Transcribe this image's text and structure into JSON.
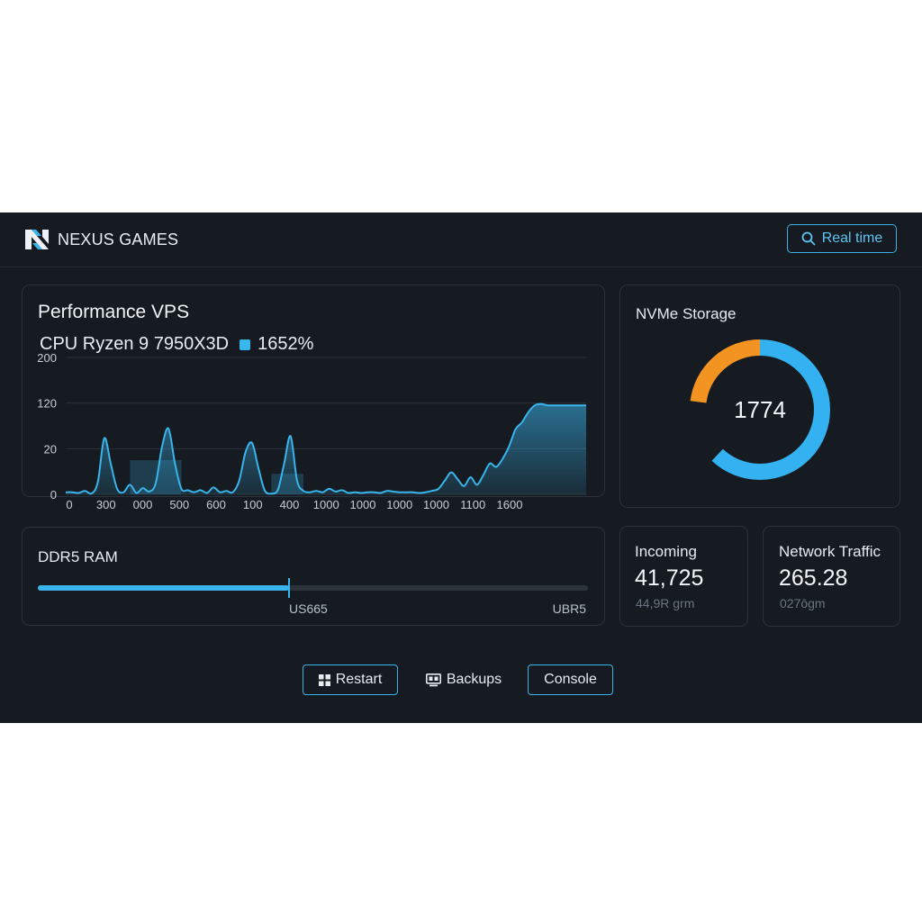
{
  "brand": {
    "name": "NEXUS GAMES"
  },
  "header": {
    "realtime_label": "Real time"
  },
  "performance": {
    "title": "Performance VPS",
    "cpu_label": "CPU Ryzen 9 7950X3D",
    "cpu_value": "1652%"
  },
  "chart_data": {
    "type": "area",
    "y_tick_labels": [
      "200",
      "120",
      "20",
      "0"
    ],
    "x_tick_labels": [
      "0",
      "300",
      "000",
      "500",
      "600",
      "100",
      "400",
      "1000",
      "1000",
      "1000",
      "1000",
      "1100",
      "1600"
    ],
    "y_plot_range": [
      0,
      200
    ],
    "values": [
      3,
      3,
      2,
      5,
      1,
      18,
      82,
      45,
      8,
      3,
      14,
      2,
      9,
      4,
      16,
      70,
      96,
      45,
      8,
      6,
      3,
      6,
      2,
      10,
      3,
      5,
      3,
      20,
      62,
      75,
      38,
      5,
      1,
      6,
      45,
      85,
      20,
      5,
      3,
      5,
      3,
      8,
      4,
      6,
      2,
      3,
      2,
      3,
      3,
      2,
      5,
      4,
      3,
      3,
      3,
      2,
      3,
      5,
      8,
      20,
      32,
      22,
      12,
      25,
      14,
      28,
      45,
      40,
      52,
      70,
      95,
      105,
      120,
      130,
      132,
      130,
      130,
      130,
      130,
      130,
      130,
      130
    ],
    "bands": [
      {
        "from_index": 10,
        "to_index": 18,
        "level": 50
      },
      {
        "from_index": 32,
        "to_index": 37,
        "level": 30
      }
    ],
    "grid": true,
    "color": "#3ab4ec"
  },
  "storage": {
    "title": "NVMe Storage",
    "value": "1774",
    "donut": {
      "blue_fraction": 0.62,
      "orange_fraction": 0.23,
      "blue_color": "#33b1f0",
      "orange_color": "#f39422"
    }
  },
  "ram": {
    "title": "DDR5 RAM",
    "fill_fraction": 0.456,
    "label_left": "US665",
    "label_right": "UBR5"
  },
  "incoming": {
    "title": "Incoming",
    "value": "41,725",
    "sub": "44,9R grm"
  },
  "network": {
    "title": "Network Traffic",
    "value": "265.28",
    "sub": "027ōgm"
  },
  "actions": {
    "restart_label": "Restart",
    "backups_label": "Backups",
    "console_label": "Console"
  }
}
